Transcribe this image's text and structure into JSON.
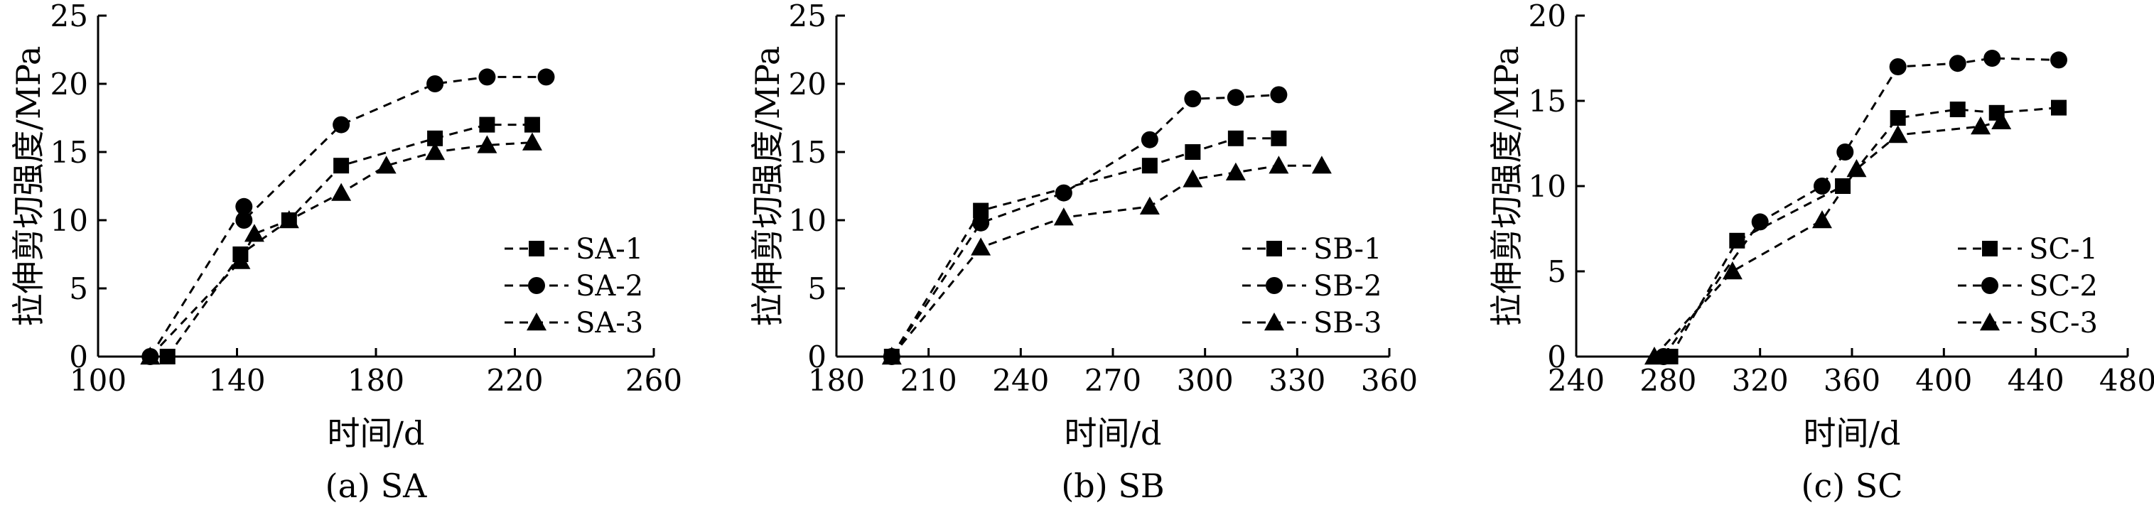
{
  "chart_data": [
    {
      "type": "line",
      "caption": "(a) SA",
      "xlabel": "时间/d",
      "ylabel": "拉伸剪切强度/MPa",
      "xlim": [
        100,
        260
      ],
      "ylim": [
        0,
        25
      ],
      "xticks": [
        100,
        140,
        180,
        220,
        260
      ],
      "yticks": [
        0,
        5,
        10,
        15,
        20,
        25
      ],
      "legend": "right",
      "series": [
        {
          "name": "SA-1",
          "marker": "square",
          "points": [
            [
              120,
              0
            ],
            [
              141,
              7.5
            ],
            [
              155,
              10
            ],
            [
              170,
              14
            ],
            [
              197,
              16
            ],
            [
              212,
              17
            ],
            [
              225,
              17
            ]
          ]
        },
        {
          "name": "SA-2",
          "marker": "circle",
          "points": [
            [
              115,
              0
            ],
            [
              142,
              11
            ],
            [
              142,
              10
            ],
            [
              170,
              17
            ],
            [
              197,
              20
            ],
            [
              212,
              20.5
            ],
            [
              229,
              20.5
            ]
          ]
        },
        {
          "name": "SA-3",
          "marker": "triangle",
          "points": [
            [
              115,
              0
            ],
            [
              141,
              7
            ],
            [
              145,
              9
            ],
            [
              155,
              10
            ],
            [
              170,
              12
            ],
            [
              183,
              14
            ],
            [
              197,
              15
            ],
            [
              212,
              15.5
            ],
            [
              225,
              15.7
            ]
          ]
        }
      ]
    },
    {
      "type": "line",
      "caption": "(b) SB",
      "xlabel": "时间/d",
      "ylabel": "拉伸剪切强度/MPa",
      "xlim": [
        180,
        360
      ],
      "ylim": [
        0,
        25
      ],
      "xticks": [
        180,
        210,
        240,
        270,
        300,
        330,
        360
      ],
      "yticks": [
        0,
        5,
        10,
        15,
        20,
        25
      ],
      "legend": "right",
      "series": [
        {
          "name": "SB-1",
          "marker": "square",
          "points": [
            [
              198,
              0
            ],
            [
              227,
              10.7
            ],
            [
              282,
              14
            ],
            [
              296,
              15
            ],
            [
              310,
              16
            ],
            [
              324,
              16
            ]
          ]
        },
        {
          "name": "SB-2",
          "marker": "circle",
          "points": [
            [
              198,
              0
            ],
            [
              227,
              9.8
            ],
            [
              254,
              12
            ],
            [
              282,
              15.9
            ],
            [
              296,
              18.9
            ],
            [
              310,
              19
            ],
            [
              324,
              19.2
            ]
          ]
        },
        {
          "name": "SB-3",
          "marker": "triangle",
          "points": [
            [
              198,
              0
            ],
            [
              227,
              8
            ],
            [
              254,
              10.2
            ],
            [
              282,
              11
            ],
            [
              296,
              13
            ],
            [
              310,
              13.5
            ],
            [
              324,
              14
            ],
            [
              338,
              14
            ]
          ]
        }
      ]
    },
    {
      "type": "line",
      "caption": "(c) SC",
      "xlabel": "时间/d",
      "ylabel": "拉伸剪切强度/MPa",
      "xlim": [
        240,
        480
      ],
      "ylim": [
        0,
        20
      ],
      "xticks": [
        240,
        280,
        320,
        360,
        400,
        440,
        480
      ],
      "yticks": [
        0,
        5,
        10,
        15,
        20
      ],
      "legend": "right",
      "series": [
        {
          "name": "SC-1",
          "marker": "square",
          "points": [
            [
              281,
              0
            ],
            [
              310,
              6.8
            ],
            [
              356,
              10
            ],
            [
              380,
              14
            ],
            [
              406,
              14.5
            ],
            [
              423,
              14.3
            ],
            [
              450,
              14.6
            ]
          ]
        },
        {
          "name": "SC-2",
          "marker": "circle",
          "points": [
            [
              278,
              0
            ],
            [
              320,
              7.9
            ],
            [
              347,
              10
            ],
            [
              357,
              12
            ],
            [
              380,
              17
            ],
            [
              406,
              17.2
            ],
            [
              421,
              17.5
            ],
            [
              450,
              17.4
            ]
          ]
        },
        {
          "name": "SC-3",
          "marker": "triangle",
          "points": [
            [
              274,
              0
            ],
            [
              308,
              5
            ],
            [
              347,
              8
            ],
            [
              362,
              11
            ],
            [
              380,
              13
            ],
            [
              416,
              13.5
            ],
            [
              425,
              13.8
            ]
          ]
        }
      ]
    }
  ]
}
